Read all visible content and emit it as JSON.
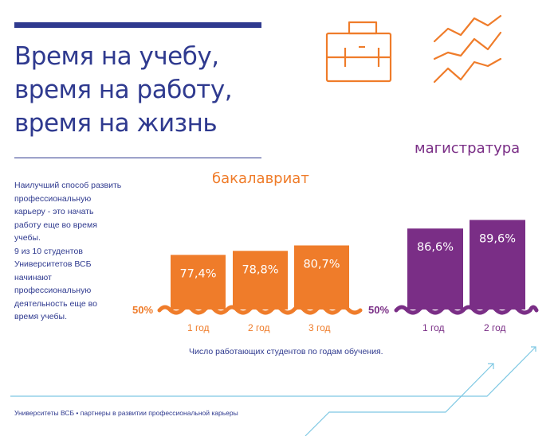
{
  "header": {
    "title_lines": [
      "Время на учебу,",
      "время на работу,",
      "время на жизнь"
    ]
  },
  "intro": {
    "lines": [
      "Наилучший способ развить",
      "профессиональную",
      "карьеру - это начать",
      "работу еще во время",
      "учебы.",
      "9 из 10 студентов",
      "Университетов ВСБ",
      "начинают",
      "профессиональную",
      "деятельность еще во",
      "время учебы."
    ]
  },
  "icons": {
    "briefcase": "briefcase-icon",
    "trend_lines": "trend-lines-icon",
    "arrows": "growth-arrows-icon"
  },
  "colors": {
    "brand_blue": "#2f3a8f",
    "bachelor_orange": "#ef7c2a",
    "master_purple": "#7a2e86",
    "arrow_blue": "#7ec8e3"
  },
  "chart_data": [
    {
      "type": "bar",
      "title": "бакалавриат",
      "categories": [
        "1 год",
        "2 год",
        "3 год"
      ],
      "values": [
        77.4,
        78.8,
        80.7
      ],
      "value_labels": [
        "77,4%",
        "78,8%",
        "80,7%"
      ],
      "axis_break_label": "50%",
      "ylim": [
        50,
        100
      ],
      "color": "#ef7c2a"
    },
    {
      "type": "bar",
      "title": "магистратура",
      "categories": [
        "1 год",
        "2 год"
      ],
      "values": [
        86.6,
        89.6
      ],
      "value_labels": [
        "86,6%",
        "89,6%"
      ],
      "axis_break_label": "50%",
      "ylim": [
        50,
        100
      ],
      "color": "#7a2e86"
    }
  ],
  "caption": "Число работающих студентов по годам обучения.",
  "footer": "Университеты ВСБ • партнеры в развитии профессиональной карьеры"
}
